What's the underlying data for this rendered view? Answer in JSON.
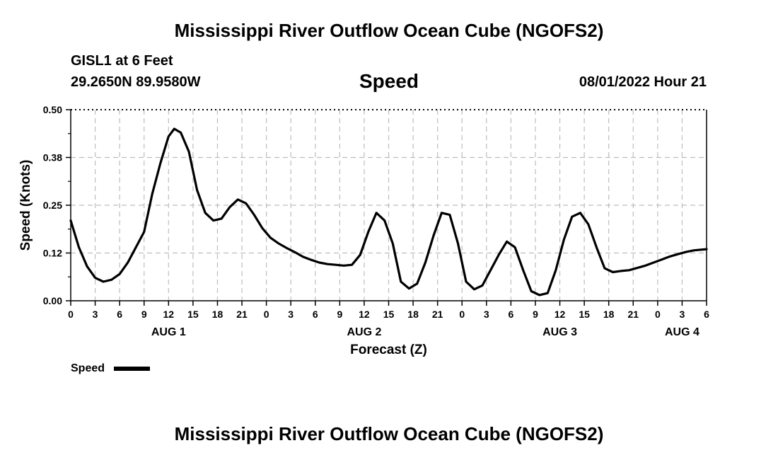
{
  "page": {
    "title_top": "Mississippi River Outflow Ocean Cube (NGOFS2)",
    "title_bottom": "Mississippi River Outflow Ocean Cube (NGOFS2)",
    "station": "GISL1 at 6 Feet",
    "coords": "29.2650N  89.9580W",
    "variable": "Speed",
    "timestamp": "08/01/2022 Hour 21"
  },
  "chart_data": {
    "type": "line",
    "title": "Speed",
    "xlabel": "Forecast (Z)",
    "ylabel": "Speed (Knots)",
    "ylim": [
      0,
      0.5
    ],
    "xlim": [
      0,
      78
    ],
    "x_unit": "hours from 00Z Aug 1 2022",
    "y_ticks": [
      "0.00",
      "0.12",
      "0.25",
      "0.38",
      "0.50"
    ],
    "x_ticks": [
      "0",
      "3",
      "6",
      "9",
      "12",
      "15",
      "18",
      "21",
      "0",
      "3",
      "6",
      "9",
      "12",
      "15",
      "18",
      "21",
      "0",
      "3",
      "6",
      "9",
      "12",
      "15",
      "18",
      "21",
      "0",
      "3",
      "6"
    ],
    "date_labels": [
      {
        "hour": 12,
        "label": "AUG 1"
      },
      {
        "hour": 36,
        "label": "AUG 2"
      },
      {
        "hour": 60,
        "label": "AUG 3"
      },
      {
        "hour": 75,
        "label": "AUG 4"
      }
    ],
    "grid": true,
    "legend": {
      "position": "bottom-left",
      "entries": [
        {
          "name": "Speed",
          "color": "#000000"
        }
      ]
    },
    "series": [
      {
        "name": "Speed",
        "color": "#000000",
        "x": [
          0,
          1,
          2,
          3,
          4,
          5,
          6,
          7,
          8,
          9,
          10,
          11,
          12,
          12.7,
          13.5,
          14.5,
          15.5,
          16.5,
          17.5,
          18.5,
          19.5,
          20.5,
          21.5,
          22.5,
          23.5,
          24.5,
          25.5,
          26.5,
          27.5,
          28.5,
          29.5,
          30.5,
          31.5,
          32.5,
          33.5,
          34.5,
          35.5,
          36.5,
          37.5,
          38.5,
          39.5,
          40.5,
          41.5,
          42.5,
          43.5,
          44.5,
          45.5,
          46.5,
          47.5,
          48.5,
          49.5,
          50.5,
          51.5,
          52.5,
          53.5,
          54.5,
          55.5,
          56.5,
          57.5,
          58.5,
          59.5,
          60.5,
          61.5,
          62.5,
          63.5,
          64.5,
          65.5,
          66.5,
          67.5,
          68.5,
          69.5,
          70.5,
          71.5,
          72.5,
          73.5,
          74.5,
          75.5,
          76.5,
          78
        ],
        "values": [
          0.21,
          0.14,
          0.09,
          0.06,
          0.05,
          0.055,
          0.07,
          0.1,
          0.14,
          0.18,
          0.28,
          0.36,
          0.43,
          0.45,
          0.44,
          0.39,
          0.29,
          0.23,
          0.21,
          0.215,
          0.245,
          0.265,
          0.255,
          0.225,
          0.19,
          0.165,
          0.15,
          0.138,
          0.127,
          0.115,
          0.107,
          0.1,
          0.096,
          0.094,
          0.092,
          0.094,
          0.12,
          0.18,
          0.23,
          0.21,
          0.15,
          0.05,
          0.032,
          0.045,
          0.1,
          0.17,
          0.23,
          0.225,
          0.15,
          0.05,
          0.03,
          0.04,
          0.08,
          0.12,
          0.155,
          0.14,
          0.08,
          0.025,
          0.015,
          0.02,
          0.08,
          0.16,
          0.22,
          0.23,
          0.2,
          0.14,
          0.085,
          0.075,
          0.078,
          0.08,
          0.086,
          0.092,
          0.1,
          0.108,
          0.116,
          0.122,
          0.128,
          0.132,
          0.135
        ]
      }
    ]
  }
}
